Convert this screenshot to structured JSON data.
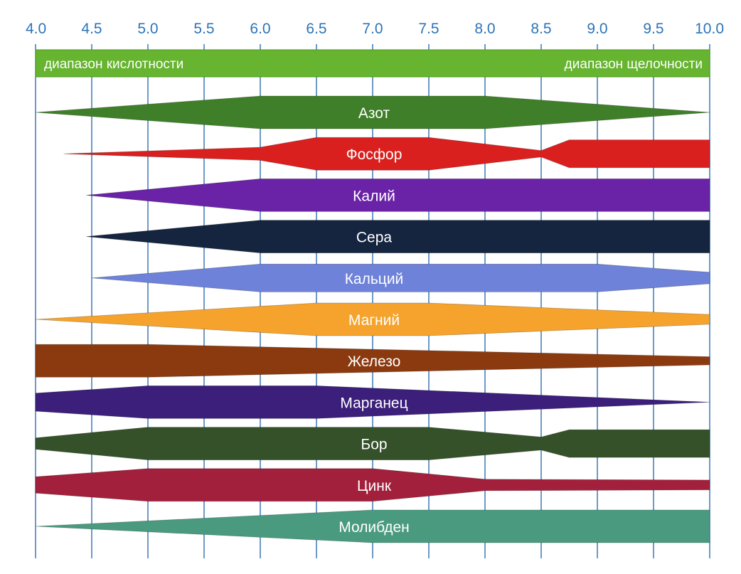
{
  "chart_data": {
    "type": "area",
    "title": "",
    "xlabel": "",
    "ylabel": "",
    "xlim": [
      4.0,
      10.0
    ],
    "ticks": [
      "4.0",
      "4.5",
      "5.0",
      "5.5",
      "6.0",
      "6.5",
      "7.0",
      "7.5",
      "8.0",
      "8.5",
      "9.0",
      "9.5",
      "10.0"
    ],
    "range_bar": {
      "left_label": "диапазон кислотности",
      "right_label": "диапазон щелочности",
      "color": "#66b42f"
    },
    "series": [
      {
        "name": "Азот",
        "color": "#3f7f2a",
        "profile": [
          [
            4.0,
            0.0
          ],
          [
            6.0,
            1.0
          ],
          [
            8.0,
            1.0
          ],
          [
            10.0,
            0.0
          ]
        ]
      },
      {
        "name": "Фосфор",
        "color": "#d9201f",
        "profile": [
          [
            4.25,
            0.0
          ],
          [
            6.0,
            0.4
          ],
          [
            6.5,
            1.0
          ],
          [
            7.5,
            1.0
          ],
          [
            8.5,
            0.2
          ],
          [
            8.75,
            0.85
          ],
          [
            10.0,
            0.85
          ]
        ]
      },
      {
        "name": "Калий",
        "color": "#6a23a6",
        "profile": [
          [
            4.45,
            0.0
          ],
          [
            6.0,
            1.0
          ],
          [
            10.0,
            1.0
          ]
        ]
      },
      {
        "name": "Сера",
        "color": "#15243f",
        "profile": [
          [
            4.45,
            0.0
          ],
          [
            6.0,
            1.0
          ],
          [
            10.0,
            1.0
          ]
        ]
      },
      {
        "name": "Кальций",
        "color": "#6d82d8",
        "profile": [
          [
            4.5,
            0.0
          ],
          [
            6.0,
            0.85
          ],
          [
            9.0,
            0.85
          ],
          [
            10.0,
            0.35
          ]
        ]
      },
      {
        "name": "Магний",
        "color": "#f5a32c",
        "profile": [
          [
            4.0,
            0.0
          ],
          [
            6.5,
            1.0
          ],
          [
            7.5,
            1.0
          ],
          [
            10.0,
            0.3
          ]
        ]
      },
      {
        "name": "Железо",
        "color": "#8b3a10",
        "profile": [
          [
            4.0,
            1.0
          ],
          [
            5.0,
            1.0
          ],
          [
            10.0,
            0.25
          ]
        ]
      },
      {
        "name": "Марганец",
        "color": "#3b1f7a",
        "profile": [
          [
            4.0,
            0.55
          ],
          [
            5.0,
            1.0
          ],
          [
            6.5,
            1.0
          ],
          [
            10.0,
            0.0
          ]
        ]
      },
      {
        "name": "Бор",
        "color": "#35512a",
        "profile": [
          [
            4.0,
            0.35
          ],
          [
            5.0,
            1.0
          ],
          [
            7.5,
            1.0
          ],
          [
            8.5,
            0.4
          ],
          [
            8.75,
            0.85
          ],
          [
            10.0,
            0.85
          ]
        ]
      },
      {
        "name": "Цинк",
        "color": "#a3203c",
        "profile": [
          [
            4.0,
            0.5
          ],
          [
            5.0,
            1.0
          ],
          [
            7.0,
            1.0
          ],
          [
            8.0,
            0.35
          ],
          [
            10.0,
            0.3
          ]
        ]
      },
      {
        "name": "Молибден",
        "color": "#4a9a80",
        "profile": [
          [
            4.0,
            0.0
          ],
          [
            7.0,
            1.0
          ],
          [
            10.0,
            1.0
          ]
        ]
      }
    ]
  }
}
